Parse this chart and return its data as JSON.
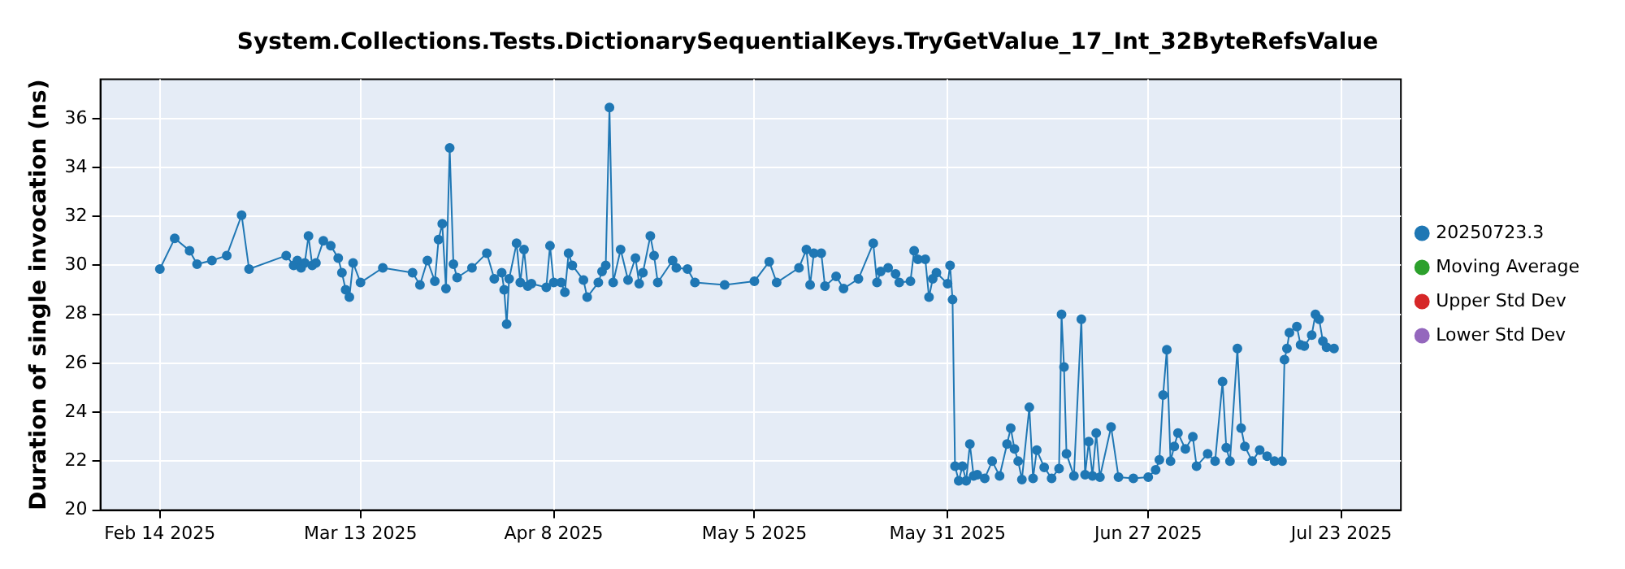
{
  "chart_data": {
    "type": "line",
    "title": "System.Collections.Tests.DictionarySequentialKeys.TryGetValue_17_Int_32ByteRefsValue",
    "ylabel": "Duration of single invocation (ns)",
    "x": [
      "2025-02-14",
      "2025-02-16",
      "2025-02-18",
      "2025-02-19",
      "2025-02-21",
      "2025-02-23",
      "2025-02-25",
      "2025-02-26",
      "2025-03-03",
      "2025-03-04",
      "2025-03-04T12:00",
      "2025-03-05",
      "2025-03-05T12:00",
      "2025-03-06",
      "2025-03-06T12:00",
      "2025-03-07",
      "2025-03-08",
      "2025-03-09",
      "2025-03-10",
      "2025-03-10T12:00",
      "2025-03-11",
      "2025-03-11T12:00",
      "2025-03-12",
      "2025-03-13",
      "2025-03-16",
      "2025-03-20",
      "2025-03-21",
      "2025-03-22",
      "2025-03-23",
      "2025-03-23T12:00",
      "2025-03-24",
      "2025-03-24T12:00",
      "2025-03-25",
      "2025-03-25T12:00",
      "2025-03-26",
      "2025-03-28",
      "2025-03-30",
      "2025-03-31",
      "2025-04-01",
      "2025-04-01T08:00",
      "2025-04-01T16:00",
      "2025-04-02",
      "2025-04-03",
      "2025-04-03T12:00",
      "2025-04-04",
      "2025-04-04T12:00",
      "2025-04-05",
      "2025-04-07",
      "2025-04-07T12:00",
      "2025-04-08",
      "2025-04-09",
      "2025-04-09T12:00",
      "2025-04-10",
      "2025-04-10T12:00",
      "2025-04-12",
      "2025-04-12T12:00",
      "2025-04-14",
      "2025-04-14T12:00",
      "2025-04-15",
      "2025-04-15T12:00",
      "2025-04-16",
      "2025-04-17",
      "2025-04-18",
      "2025-04-19",
      "2025-04-19T12:00",
      "2025-04-20",
      "2025-04-21",
      "2025-04-21T12:00",
      "2025-04-22",
      "2025-04-24",
      "2025-04-24T12:00",
      "2025-04-26",
      "2025-04-27",
      "2025-05-01",
      "2025-05-05",
      "2025-05-07",
      "2025-05-08",
      "2025-05-11",
      "2025-05-12",
      "2025-05-12T12:00",
      "2025-05-13",
      "2025-05-14",
      "2025-05-14T12:00",
      "2025-05-16",
      "2025-05-17",
      "2025-05-19",
      "2025-05-21",
      "2025-05-21T12:00",
      "2025-05-22",
      "2025-05-23",
      "2025-05-24",
      "2025-05-24T12:00",
      "2025-05-26",
      "2025-05-26T12:00",
      "2025-05-27",
      "2025-05-28",
      "2025-05-28T12:00",
      "2025-05-29",
      "2025-05-29T12:00",
      "2025-05-31",
      "2025-05-31T08:00",
      "2025-05-31T16:00",
      "2025-06-01",
      "2025-06-01T12:00",
      "2025-06-02",
      "2025-06-02T12:00",
      "2025-06-03",
      "2025-06-03T12:00",
      "2025-06-04",
      "2025-06-05",
      "2025-06-06",
      "2025-06-07",
      "2025-06-08",
      "2025-06-08T12:00",
      "2025-06-09",
      "2025-06-09T12:00",
      "2025-06-10",
      "2025-06-11",
      "2025-06-11T12:00",
      "2025-06-12",
      "2025-06-13",
      "2025-06-14",
      "2025-06-15",
      "2025-06-15T08:00",
      "2025-06-15T16:00",
      "2025-06-16",
      "2025-06-17",
      "2025-06-18",
      "2025-06-18T12:00",
      "2025-06-19",
      "2025-06-19T12:00",
      "2025-06-20",
      "2025-06-20T12:00",
      "2025-06-22",
      "2025-06-23",
      "2025-06-25",
      "2025-06-27",
      "2025-06-28",
      "2025-06-28T12:00",
      "2025-06-29",
      "2025-06-29T12:00",
      "2025-06-30",
      "2025-06-30T12:00",
      "2025-07-01",
      "2025-07-02",
      "2025-07-03",
      "2025-07-03T12:00",
      "2025-07-05",
      "2025-07-06",
      "2025-07-07",
      "2025-07-07T12:00",
      "2025-07-08",
      "2025-07-09",
      "2025-07-09T12:00",
      "2025-07-10",
      "2025-07-11",
      "2025-07-12",
      "2025-07-13",
      "2025-07-14",
      "2025-07-15",
      "2025-07-15T08:00",
      "2025-07-15T16:00",
      "2025-07-16",
      "2025-07-17",
      "2025-07-17T12:00",
      "2025-07-18",
      "2025-07-19",
      "2025-07-19T12:00",
      "2025-07-20",
      "2025-07-20T12:00",
      "2025-07-21",
      "2025-07-22"
    ],
    "series": [
      {
        "name": "20250723.3",
        "color": "#1f77b4",
        "values": [
          29.85,
          31.1,
          30.6,
          30.05,
          30.2,
          30.4,
          32.05,
          29.85,
          30.4,
          30.0,
          30.2,
          29.9,
          30.1,
          31.2,
          30.0,
          30.1,
          31.0,
          30.8,
          30.3,
          29.7,
          29.0,
          28.7,
          30.1,
          29.3,
          29.9,
          29.7,
          29.2,
          30.2,
          29.35,
          31.05,
          31.7,
          29.05,
          34.8,
          30.05,
          29.5,
          29.9,
          30.5,
          29.45,
          29.7,
          29.0,
          27.6,
          29.45,
          30.9,
          29.3,
          30.65,
          29.15,
          29.25,
          29.1,
          30.8,
          29.3,
          29.3,
          28.9,
          30.5,
          30.0,
          29.4,
          28.7,
          29.3,
          29.75,
          30.0,
          36.45,
          29.3,
          30.65,
          29.4,
          30.3,
          29.25,
          29.7,
          31.2,
          30.4,
          29.3,
          30.2,
          29.9,
          29.85,
          29.3,
          29.2,
          29.35,
          30.15,
          29.3,
          29.9,
          30.65,
          29.2,
          30.5,
          30.5,
          29.15,
          29.55,
          29.05,
          29.45,
          30.9,
          29.3,
          29.75,
          29.9,
          29.65,
          29.3,
          29.35,
          30.6,
          30.25,
          30.25,
          28.7,
          29.45,
          29.7,
          29.25,
          30.0,
          28.6,
          21.8,
          21.2,
          21.8,
          21.2,
          22.7,
          21.4,
          21.45,
          21.3,
          22.0,
          21.4,
          22.7,
          23.35,
          22.5,
          22.0,
          21.25,
          24.2,
          21.3,
          22.45,
          21.75,
          21.3,
          21.7,
          28.0,
          25.85,
          22.3,
          21.4,
          27.8,
          21.45,
          22.8,
          21.4,
          23.15,
          21.35,
          23.4,
          21.35,
          21.3,
          21.35,
          21.65,
          22.05,
          24.7,
          26.55,
          22.0,
          22.6,
          23.15,
          22.5,
          23.0,
          21.8,
          22.3,
          22.0,
          25.25,
          22.55,
          22.0,
          26.6,
          23.35,
          22.6,
          22.0,
          22.45,
          22.2,
          22.0,
          22.0,
          26.15,
          26.6,
          27.25,
          27.5,
          26.75,
          26.7,
          27.15,
          28.0,
          27.8,
          26.9,
          26.65,
          26.6
        ]
      },
      {
        "name": "Moving Average",
        "color": "#2ca02c",
        "values": [
          null,
          null,
          null,
          null,
          null,
          null,
          null,
          null,
          null,
          null,
          null,
          null,
          null,
          null,
          null,
          null,
          null,
          null,
          null,
          null,
          null,
          null,
          null,
          null,
          null,
          null,
          null,
          null,
          null,
          null,
          null,
          null,
          null,
          null,
          null,
          null,
          null,
          null,
          null,
          null,
          null,
          null,
          null,
          null,
          null,
          null,
          null,
          null,
          null,
          null,
          null,
          null,
          null,
          null,
          null,
          null,
          null,
          null,
          null,
          null,
          null,
          null,
          null,
          null,
          null,
          null,
          null,
          null,
          null,
          null,
          null,
          null,
          null,
          null,
          null,
          null,
          null,
          null,
          null,
          null,
          null,
          null,
          null,
          null,
          null,
          null,
          null,
          null,
          null,
          null,
          null,
          null,
          null,
          null,
          null,
          null,
          null,
          null,
          null,
          null,
          null,
          null,
          null,
          null,
          null,
          null,
          null,
          null,
          null,
          null,
          null,
          null,
          null,
          null,
          null,
          null,
          null,
          null,
          null,
          null,
          null,
          null,
          null,
          null,
          null,
          null,
          null,
          null,
          null,
          null,
          null,
          null,
          null,
          null,
          null,
          null,
          null,
          null,
          null,
          null,
          null,
          null,
          null,
          null,
          null,
          null,
          null,
          null,
          null,
          null,
          null,
          null,
          null,
          null,
          null,
          null,
          null,
          null,
          null,
          null,
          null,
          null,
          null,
          null,
          null,
          null,
          null,
          null,
          null,
          null,
          null,
          null
        ]
      },
      {
        "name": "Upper Std Dev",
        "color": "#d62728",
        "values": [
          null,
          null,
          null,
          null,
          null,
          null,
          null,
          null,
          null,
          null,
          null,
          null,
          null,
          null,
          null,
          null,
          null,
          null,
          null,
          null,
          null,
          null,
          null,
          null,
          null,
          null,
          null,
          null,
          null,
          null,
          null,
          null,
          null,
          null,
          null,
          null,
          null,
          null,
          null,
          null,
          null,
          null,
          null,
          null,
          null,
          null,
          null,
          null,
          null,
          null,
          null,
          null,
          null,
          null,
          null,
          null,
          null,
          null,
          null,
          null,
          null,
          null,
          null,
          null,
          null,
          null,
          null,
          null,
          null,
          null,
          null,
          null,
          null,
          null,
          null,
          null,
          null,
          null,
          null,
          null,
          null,
          null,
          null,
          null,
          null,
          null,
          null,
          null,
          null,
          null,
          null,
          null,
          null,
          null,
          null,
          null,
          null,
          null,
          null,
          null,
          null,
          null,
          null,
          null,
          null,
          null,
          null,
          null,
          null,
          null,
          null,
          null,
          null,
          null,
          null,
          null,
          null,
          null,
          null,
          null,
          null,
          null,
          null,
          null,
          null,
          null,
          null,
          null,
          null,
          null,
          null,
          null,
          null,
          null,
          null,
          null,
          null,
          null,
          null,
          null,
          null,
          null,
          null,
          null,
          null,
          null,
          null,
          null,
          null,
          null,
          null,
          null,
          null,
          null,
          null,
          null,
          null,
          null,
          null,
          null,
          null,
          null,
          null,
          null,
          null,
          null,
          null,
          null,
          null,
          null,
          null,
          null
        ]
      },
      {
        "name": "Lower Std Dev",
        "color": "#9467bd",
        "values": [
          null,
          null,
          null,
          null,
          null,
          null,
          null,
          null,
          null,
          null,
          null,
          null,
          null,
          null,
          null,
          null,
          null,
          null,
          null,
          null,
          null,
          null,
          null,
          null,
          null,
          null,
          null,
          null,
          null,
          null,
          null,
          null,
          null,
          null,
          null,
          null,
          null,
          null,
          null,
          null,
          null,
          null,
          null,
          null,
          null,
          null,
          null,
          null,
          null,
          null,
          null,
          null,
          null,
          null,
          null,
          null,
          null,
          null,
          null,
          null,
          null,
          null,
          null,
          null,
          null,
          null,
          null,
          null,
          null,
          null,
          null,
          null,
          null,
          null,
          null,
          null,
          null,
          null,
          null,
          null,
          null,
          null,
          null,
          null,
          null,
          null,
          null,
          null,
          null,
          null,
          null,
          null,
          null,
          null,
          null,
          null,
          null,
          null,
          null,
          null,
          null,
          null,
          null,
          null,
          null,
          null,
          null,
          null,
          null,
          null,
          null,
          null,
          null,
          null,
          null,
          null,
          null,
          null,
          null,
          null,
          null,
          null,
          null,
          null,
          null,
          null,
          null,
          null,
          null,
          null,
          null,
          null,
          null,
          null,
          null,
          null,
          null,
          null,
          null,
          null,
          null,
          null,
          null,
          null,
          null,
          null,
          null,
          null,
          null,
          null,
          null,
          null,
          null,
          null,
          null,
          null,
          null,
          null,
          null,
          null,
          null,
          null,
          null,
          null,
          null,
          null,
          null,
          null,
          null,
          null,
          null,
          null
        ]
      }
    ],
    "xlim": [
      "2025-02-06",
      "2025-07-31"
    ],
    "xticks": [
      {
        "value": "2025-02-14",
        "label": "Feb 14 2025"
      },
      {
        "value": "2025-03-13",
        "label": "Mar 13 2025"
      },
      {
        "value": "2025-04-08",
        "label": "Apr 8 2025"
      },
      {
        "value": "2025-05-05",
        "label": "May 5 2025"
      },
      {
        "value": "2025-05-31",
        "label": "May 31 2025"
      },
      {
        "value": "2025-06-27",
        "label": "Jun 27 2025"
      },
      {
        "value": "2025-07-23",
        "label": "Jul 23 2025"
      }
    ],
    "ylim": [
      20,
      37.6
    ],
    "yticks": [
      20,
      22,
      24,
      26,
      28,
      30,
      32,
      34,
      36
    ],
    "grid": true,
    "legend": "right",
    "marker": "circle",
    "line_style": "solid"
  }
}
